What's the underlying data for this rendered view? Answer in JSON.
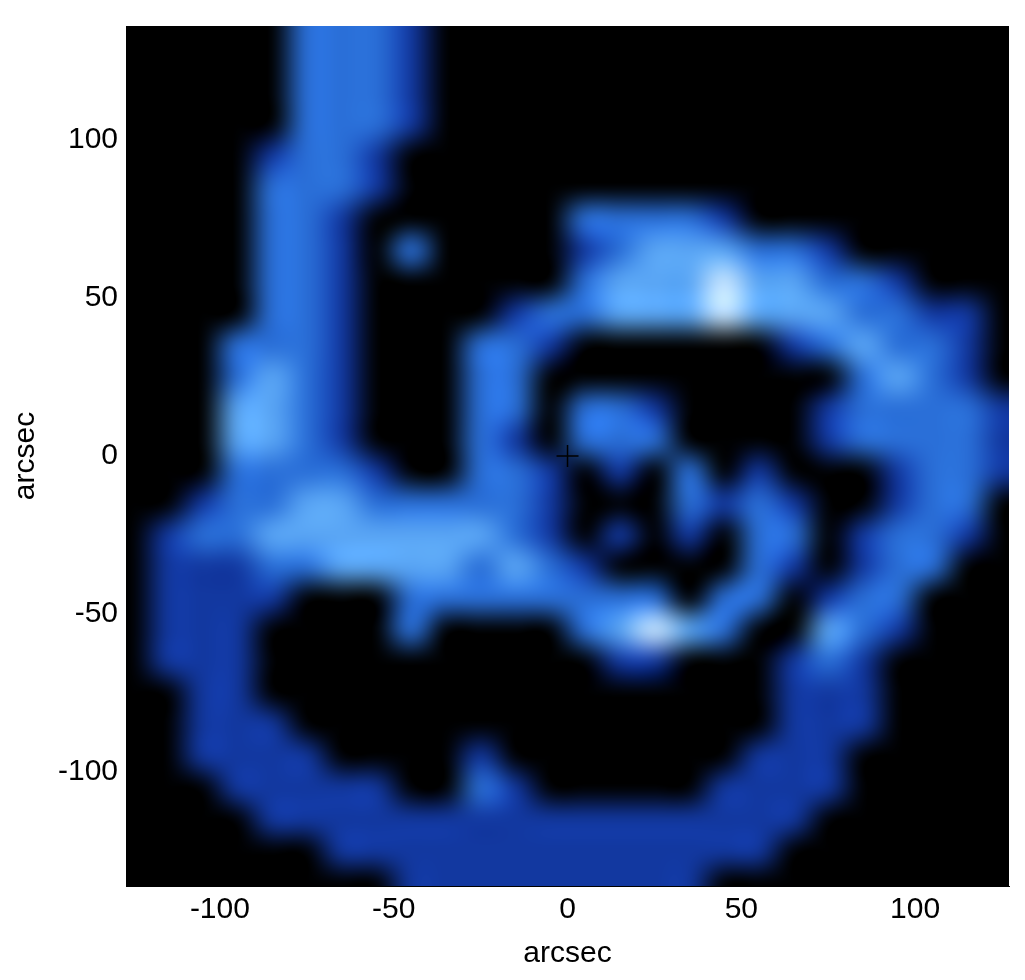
{
  "chart_data": {
    "type": "heatmap",
    "x_label": "arcsec",
    "y_label": "arcsec",
    "xlim": [
      -127,
      127
    ],
    "ylim": [
      -136,
      136
    ],
    "xticks": [
      -100,
      -50,
      0,
      50,
      100
    ],
    "yticks": [
      -100,
      -50,
      0,
      50,
      100
    ],
    "grid": false,
    "x": [
      -125,
      -115,
      -105,
      -95,
      -85,
      -75,
      -65,
      -55,
      -45,
      -35,
      -25,
      -15,
      -5,
      5,
      15,
      25,
      35,
      45,
      55,
      65,
      75,
      85,
      95,
      105,
      115,
      125
    ],
    "y": [
      135,
      125,
      115,
      105,
      95,
      85,
      75,
      65,
      55,
      45,
      35,
      25,
      15,
      5,
      -5,
      -15,
      -25,
      -35,
      -45,
      -55,
      -65,
      -75,
      -85,
      -95,
      -105,
      -115,
      -125,
      -135
    ],
    "cells": [
      [
        0,
        0,
        0,
        0,
        0,
        2,
        2,
        2,
        1,
        0,
        0,
        0,
        0,
        0,
        0,
        0,
        0,
        0,
        0,
        0,
        0,
        0,
        0,
        0,
        0,
        0
      ],
      [
        0,
        0,
        0,
        0,
        0,
        2,
        2,
        2,
        1,
        0,
        0,
        0,
        0,
        0,
        0,
        0,
        0,
        0,
        0,
        0,
        0,
        0,
        0,
        0,
        0,
        0
      ],
      [
        0,
        0,
        0,
        0,
        0,
        2,
        2,
        2,
        1,
        0,
        0,
        0,
        0,
        0,
        0,
        0,
        0,
        0,
        0,
        0,
        0,
        0,
        0,
        0,
        0,
        0
      ],
      [
        0,
        0,
        0,
        0,
        0,
        2,
        2,
        2,
        1,
        0,
        0,
        0,
        0,
        0,
        0,
        0,
        0,
        0,
        0,
        0,
        0,
        0,
        0,
        0,
        0,
        0
      ],
      [
        0,
        0,
        0,
        0,
        1,
        2,
        2,
        1,
        0,
        0,
        0,
        0,
        0,
        0,
        0,
        0,
        0,
        0,
        0,
        0,
        0,
        0,
        0,
        0,
        0,
        0
      ],
      [
        0,
        0,
        0,
        0,
        2,
        2,
        2,
        1,
        0,
        0,
        0,
        0,
        0,
        0,
        0,
        0,
        0,
        0,
        0,
        0,
        0,
        0,
        0,
        0,
        0,
        0
      ],
      [
        0,
        0,
        0,
        0,
        2,
        2,
        1,
        0,
        0,
        0,
        0,
        0,
        0,
        2,
        2,
        2,
        2,
        1,
        0,
        0,
        0,
        0,
        0,
        0,
        0,
        0
      ],
      [
        0,
        0,
        0,
        0,
        2,
        2,
        1,
        0,
        2,
        0,
        0,
        0,
        0,
        1,
        2,
        3,
        3,
        3,
        2,
        2,
        1,
        0,
        0,
        0,
        0,
        0
      ],
      [
        0,
        0,
        0,
        0,
        2,
        2,
        1,
        0,
        0,
        0,
        0,
        0,
        0,
        2,
        3,
        3,
        3,
        4,
        3,
        3,
        2,
        2,
        1,
        0,
        0,
        0
      ],
      [
        0,
        0,
        0,
        0,
        2,
        2,
        1,
        0,
        0,
        0,
        0,
        1,
        2,
        2,
        3,
        3,
        3,
        4,
        3,
        3,
        3,
        2,
        2,
        1,
        1,
        0
      ],
      [
        0,
        0,
        0,
        2,
        2,
        2,
        1,
        0,
        0,
        0,
        2,
        2,
        1,
        0,
        0,
        0,
        0,
        0,
        0,
        1,
        2,
        3,
        2,
        2,
        1,
        0
      ],
      [
        0,
        0,
        0,
        2,
        3,
        2,
        1,
        0,
        0,
        0,
        2,
        2,
        0,
        0,
        0,
        0,
        0,
        0,
        0,
        0,
        0,
        2,
        3,
        2,
        1,
        0
      ],
      [
        0,
        0,
        0,
        3,
        3,
        2,
        1,
        0,
        0,
        0,
        2,
        2,
        0,
        2,
        2,
        1,
        0,
        0,
        0,
        0,
        1,
        2,
        2,
        2,
        2,
        1
      ],
      [
        0,
        0,
        0,
        3,
        3,
        2,
        1,
        0,
        0,
        0,
        2,
        1,
        0,
        2,
        2,
        2,
        0,
        0,
        0,
        0,
        1,
        2,
        2,
        2,
        2,
        1
      ],
      [
        0,
        0,
        0,
        2,
        2,
        2,
        2,
        1,
        0,
        0,
        2,
        2,
        1,
        0,
        1,
        0,
        2,
        0,
        1,
        0,
        0,
        0,
        1,
        2,
        2,
        1
      ],
      [
        0,
        0,
        1,
        2,
        2,
        3,
        3,
        2,
        2,
        2,
        2,
        2,
        1,
        0,
        0,
        0,
        2,
        1,
        2,
        1,
        0,
        0,
        1,
        2,
        2,
        0
      ],
      [
        0,
        1,
        2,
        2,
        3,
        3,
        3,
        3,
        3,
        3,
        3,
        2,
        1,
        0,
        1,
        0,
        1,
        0,
        2,
        2,
        0,
        1,
        2,
        2,
        1,
        0
      ],
      [
        0,
        1,
        1,
        1,
        2,
        2,
        3,
        3,
        3,
        3,
        2,
        3,
        2,
        1,
        0,
        0,
        0,
        0,
        2,
        1,
        0,
        1,
        2,
        2,
        0,
        0
      ],
      [
        0,
        1,
        1,
        1,
        1,
        0,
        0,
        0,
        2,
        2,
        2,
        2,
        2,
        2,
        2,
        2,
        0,
        2,
        2,
        0,
        1,
        2,
        2,
        0,
        0,
        0
      ],
      [
        0,
        1,
        1,
        1,
        0,
        0,
        0,
        0,
        2,
        0,
        0,
        0,
        0,
        2,
        3,
        4,
        3,
        2,
        0,
        0,
        3,
        2,
        1,
        0,
        0,
        0
      ],
      [
        0,
        1,
        1,
        1,
        0,
        0,
        0,
        0,
        0,
        0,
        0,
        0,
        0,
        0,
        1,
        1,
        0,
        0,
        0,
        1,
        2,
        1,
        0,
        0,
        0,
        0
      ],
      [
        0,
        0,
        1,
        1,
        0,
        0,
        0,
        0,
        0,
        0,
        0,
        0,
        0,
        0,
        0,
        0,
        0,
        0,
        0,
        1,
        1,
        1,
        0,
        0,
        0,
        0
      ],
      [
        0,
        0,
        1,
        1,
        1,
        0,
        0,
        0,
        0,
        0,
        0,
        0,
        0,
        0,
        0,
        0,
        0,
        0,
        0,
        1,
        1,
        1,
        0,
        0,
        0,
        0
      ],
      [
        0,
        0,
        1,
        1,
        1,
        1,
        0,
        0,
        0,
        0,
        1,
        0,
        0,
        0,
        0,
        0,
        0,
        0,
        1,
        1,
        1,
        0,
        0,
        0,
        0,
        0
      ],
      [
        0,
        0,
        0,
        1,
        1,
        1,
        1,
        1,
        0,
        0,
        2,
        1,
        0,
        0,
        0,
        0,
        0,
        1,
        1,
        1,
        1,
        0,
        0,
        0,
        0,
        0
      ],
      [
        0,
        0,
        0,
        0,
        1,
        1,
        1,
        1,
        1,
        1,
        1,
        1,
        1,
        1,
        1,
        1,
        1,
        1,
        1,
        1,
        0,
        0,
        0,
        0,
        0,
        0
      ],
      [
        0,
        0,
        0,
        0,
        0,
        0,
        1,
        1,
        1,
        1,
        1,
        1,
        1,
        1,
        1,
        1,
        1,
        1,
        1,
        0,
        0,
        0,
        0,
        0,
        0,
        0
      ],
      [
        0,
        0,
        0,
        0,
        0,
        0,
        0,
        0,
        1,
        1,
        1,
        1,
        1,
        1,
        1,
        1,
        1,
        0,
        0,
        0,
        0,
        0,
        0,
        0,
        0,
        0
      ]
    ],
    "points": [
      {
        "x": 0,
        "y": 0,
        "marker": "cross"
      }
    ]
  }
}
